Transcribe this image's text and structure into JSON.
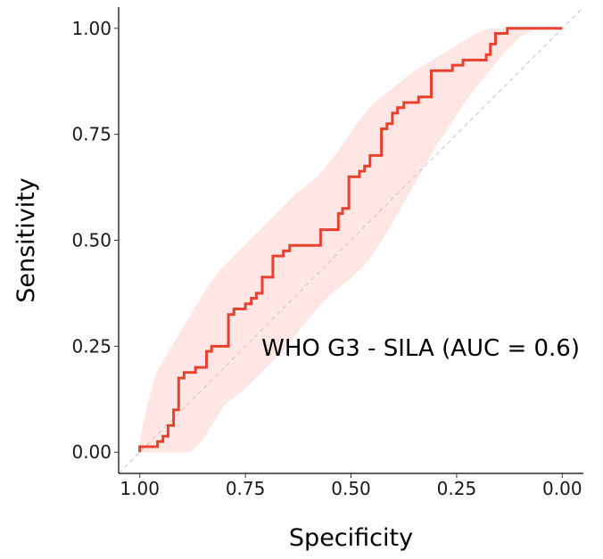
{
  "chart_data": {
    "type": "line",
    "xlabel": "Specificity",
    "ylabel": "Sensitivity",
    "xlim": [
      1.05,
      -0.05
    ],
    "ylim": [
      -0.05,
      1.05
    ],
    "x_reversed": true,
    "x_ticks": [
      {
        "value": 1.0,
        "label": "1.00"
      },
      {
        "value": 0.75,
        "label": "0.75"
      },
      {
        "value": 0.5,
        "label": "0.50"
      },
      {
        "value": 0.25,
        "label": "0.25"
      },
      {
        "value": 0.0,
        "label": "0.00"
      }
    ],
    "y_ticks": [
      {
        "value": 0.0,
        "label": "0.00"
      },
      {
        "value": 0.25,
        "label": "0.25"
      },
      {
        "value": 0.5,
        "label": "0.50"
      },
      {
        "value": 0.75,
        "label": "0.75"
      },
      {
        "value": 1.0,
        "label": "1.00"
      }
    ],
    "grid": false,
    "annotation": "WHO G3 - SILA (AUC = 0.6)",
    "colors": {
      "line": "#e8412f",
      "band": "#fde6e3",
      "reference": "#c8c8c8",
      "axis": "#000000"
    },
    "reference_line": {
      "from": [
        1.0,
        0.0
      ],
      "to": [
        0.0,
        1.0
      ],
      "style": "dashed"
    },
    "series": [
      {
        "values": [
          [
            1.0,
            0.0
          ],
          [
            1.0,
            0.013
          ],
          [
            0.958,
            0.013
          ],
          [
            0.958,
            0.025
          ],
          [
            0.945,
            0.025
          ],
          [
            0.945,
            0.038
          ],
          [
            0.933,
            0.038
          ],
          [
            0.933,
            0.063
          ],
          [
            0.92,
            0.063
          ],
          [
            0.92,
            0.1
          ],
          [
            0.908,
            0.1
          ],
          [
            0.908,
            0.175
          ],
          [
            0.895,
            0.175
          ],
          [
            0.895,
            0.188
          ],
          [
            0.868,
            0.188
          ],
          [
            0.868,
            0.2
          ],
          [
            0.842,
            0.2
          ],
          [
            0.842,
            0.238
          ],
          [
            0.83,
            0.238
          ],
          [
            0.83,
            0.25
          ],
          [
            0.79,
            0.25
          ],
          [
            0.79,
            0.325
          ],
          [
            0.777,
            0.325
          ],
          [
            0.777,
            0.338
          ],
          [
            0.75,
            0.338
          ],
          [
            0.75,
            0.35
          ],
          [
            0.736,
            0.35
          ],
          [
            0.736,
            0.363
          ],
          [
            0.724,
            0.363
          ],
          [
            0.724,
            0.375
          ],
          [
            0.71,
            0.375
          ],
          [
            0.71,
            0.413
          ],
          [
            0.685,
            0.413
          ],
          [
            0.685,
            0.463
          ],
          [
            0.66,
            0.463
          ],
          [
            0.66,
            0.475
          ],
          [
            0.645,
            0.475
          ],
          [
            0.645,
            0.488
          ],
          [
            0.572,
            0.488
          ],
          [
            0.572,
            0.525
          ],
          [
            0.53,
            0.525
          ],
          [
            0.53,
            0.563
          ],
          [
            0.52,
            0.563
          ],
          [
            0.52,
            0.575
          ],
          [
            0.505,
            0.575
          ],
          [
            0.505,
            0.65
          ],
          [
            0.48,
            0.65
          ],
          [
            0.48,
            0.663
          ],
          [
            0.468,
            0.663
          ],
          [
            0.468,
            0.675
          ],
          [
            0.455,
            0.675
          ],
          [
            0.455,
            0.7
          ],
          [
            0.428,
            0.7
          ],
          [
            0.428,
            0.763
          ],
          [
            0.415,
            0.763
          ],
          [
            0.415,
            0.775
          ],
          [
            0.402,
            0.775
          ],
          [
            0.402,
            0.8
          ],
          [
            0.39,
            0.8
          ],
          [
            0.39,
            0.813
          ],
          [
            0.375,
            0.813
          ],
          [
            0.375,
            0.825
          ],
          [
            0.34,
            0.825
          ],
          [
            0.34,
            0.838
          ],
          [
            0.31,
            0.838
          ],
          [
            0.31,
            0.9
          ],
          [
            0.26,
            0.9
          ],
          [
            0.26,
            0.913
          ],
          [
            0.235,
            0.913
          ],
          [
            0.235,
            0.925
          ],
          [
            0.18,
            0.925
          ],
          [
            0.18,
            0.938
          ],
          [
            0.17,
            0.938
          ],
          [
            0.17,
            0.963
          ],
          [
            0.158,
            0.963
          ],
          [
            0.158,
            0.988
          ],
          [
            0.13,
            0.988
          ],
          [
            0.13,
            1.0
          ],
          [
            0.0,
            1.0
          ]
        ]
      }
    ],
    "confidence_band": {
      "upper": [
        [
          1.0,
          0.03
        ],
        [
          0.98,
          0.12
        ],
        [
          0.96,
          0.19
        ],
        [
          0.93,
          0.24
        ],
        [
          0.9,
          0.29
        ],
        [
          0.87,
          0.34
        ],
        [
          0.84,
          0.39
        ],
        [
          0.81,
          0.43
        ],
        [
          0.77,
          0.47
        ],
        [
          0.72,
          0.52
        ],
        [
          0.67,
          0.57
        ],
        [
          0.63,
          0.61
        ],
        [
          0.58,
          0.65
        ],
        [
          0.53,
          0.71
        ],
        [
          0.49,
          0.77
        ],
        [
          0.45,
          0.82
        ],
        [
          0.4,
          0.86
        ],
        [
          0.35,
          0.9
        ],
        [
          0.3,
          0.93
        ],
        [
          0.25,
          0.96
        ],
        [
          0.2,
          0.99
        ],
        [
          0.17,
          1.0
        ],
        [
          0.0,
          1.0
        ]
      ],
      "lower": [
        [
          1.0,
          0.0
        ],
        [
          0.88,
          0.0
        ],
        [
          0.85,
          0.03
        ],
        [
          0.8,
          0.11
        ],
        [
          0.75,
          0.15
        ],
        [
          0.7,
          0.2
        ],
        [
          0.66,
          0.24
        ],
        [
          0.62,
          0.29
        ],
        [
          0.58,
          0.34
        ],
        [
          0.54,
          0.38
        ],
        [
          0.5,
          0.41
        ],
        [
          0.46,
          0.45
        ],
        [
          0.42,
          0.51
        ],
        [
          0.38,
          0.58
        ],
        [
          0.34,
          0.65
        ],
        [
          0.3,
          0.72
        ],
        [
          0.26,
          0.78
        ],
        [
          0.22,
          0.84
        ],
        [
          0.18,
          0.89
        ],
        [
          0.14,
          0.94
        ],
        [
          0.1,
          0.98
        ],
        [
          0.06,
          1.0
        ],
        [
          0.0,
          1.0
        ]
      ]
    }
  }
}
